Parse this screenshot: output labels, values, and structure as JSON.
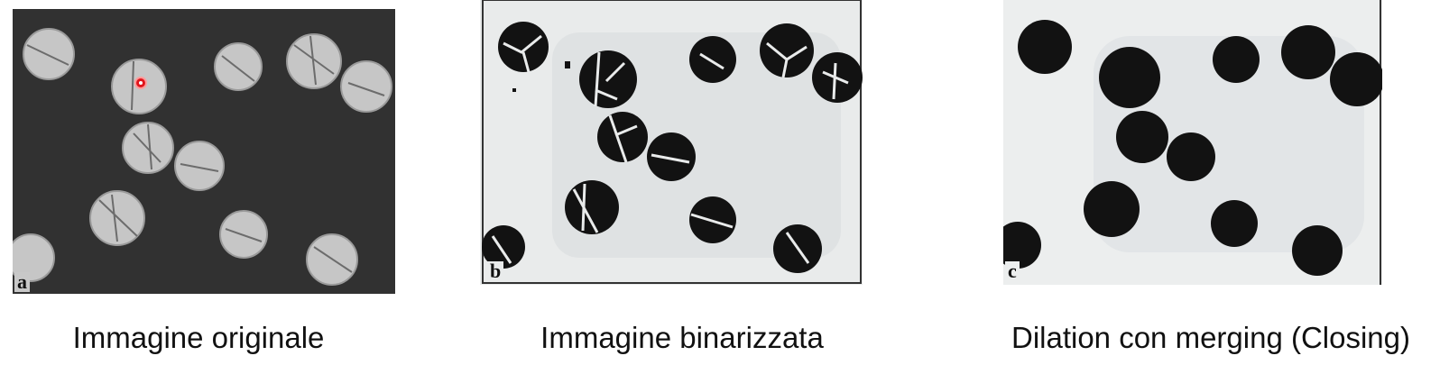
{
  "panels": [
    {
      "letter": "a",
      "caption": "Immagine originale"
    },
    {
      "letter": "b",
      "caption": "Immagine binarizzata"
    },
    {
      "letter": "c",
      "caption": "Dilation con merging (Closing)"
    }
  ],
  "colors": {
    "original_background": "#303030",
    "grain_fill": "#c8c8c8",
    "binary_background": "#e6e8e8",
    "binary_grain": "#111111",
    "marker": "#e0151b"
  }
}
